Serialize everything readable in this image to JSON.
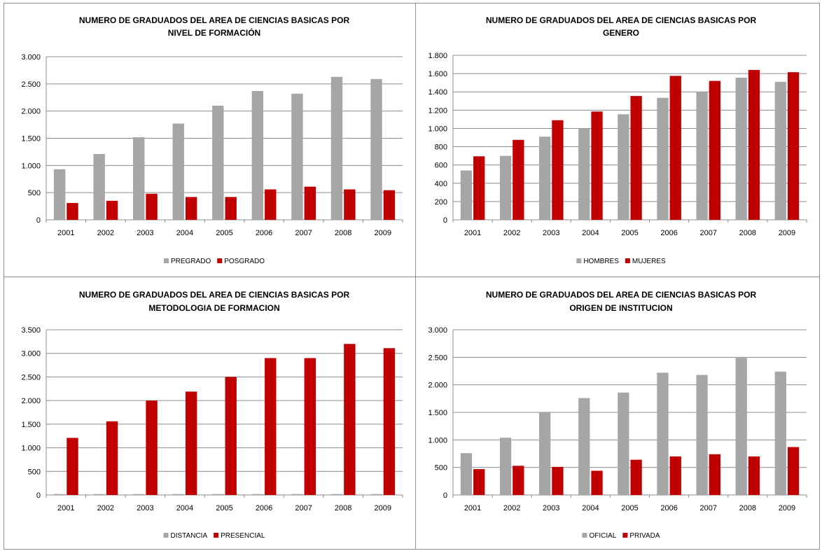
{
  "colors": {
    "gray": "#a6a6a6",
    "red": "#c00000",
    "gridline": "#8c8c8c",
    "axis": "#8c8c8c"
  },
  "chart_data": [
    {
      "type": "bar",
      "title": [
        "NUMERO DE GRADUADOS  DEL AREA DE CIENCIAS BASICAS POR",
        "NIVEL DE FORMACIÓN"
      ],
      "categories": [
        "2001",
        "2002",
        "2003",
        "2004",
        "2005",
        "2006",
        "2007",
        "2008",
        "2009"
      ],
      "series": [
        {
          "name": "PREGRADO",
          "color": "#a6a6a6",
          "values": [
            930,
            1210,
            1520,
            1770,
            2100,
            2370,
            2320,
            2630,
            2590
          ]
        },
        {
          "name": "POSGRADO",
          "color": "#c00000",
          "values": [
            310,
            350,
            480,
            420,
            420,
            560,
            610,
            560,
            545
          ]
        }
      ],
      "ylim": [
        0,
        3000
      ],
      "yticks": [
        0,
        500,
        1000,
        1500,
        2000,
        2500,
        3000
      ],
      "ytick_labels": [
        "0",
        "500",
        "1.000",
        "1.500",
        "2.000",
        "2.500",
        "3.000"
      ],
      "grid": true,
      "legend": "bottom"
    },
    {
      "type": "bar",
      "title": [
        "NUMERO DE GRADUADOS  DEL AREA DE CIENCIAS BASICAS POR",
        "GENERO"
      ],
      "categories": [
        "2001",
        "2002",
        "2003",
        "2004",
        "2005",
        "2006",
        "2007",
        "2008",
        "2009"
      ],
      "series": [
        {
          "name": "HOMBRES",
          "color": "#a6a6a6",
          "values": [
            540,
            700,
            910,
            1000,
            1155,
            1335,
            1400,
            1555,
            1510
          ]
        },
        {
          "name": "MUJERES",
          "color": "#c00000",
          "values": [
            695,
            875,
            1090,
            1185,
            1355,
            1575,
            1520,
            1640,
            1615
          ]
        }
      ],
      "ylim": [
        0,
        1800
      ],
      "yticks": [
        0,
        200,
        400,
        600,
        800,
        1000,
        1200,
        1400,
        1600,
        1800
      ],
      "ytick_labels": [
        "0",
        "200",
        "400",
        "600",
        "800",
        "1.000",
        "1.200",
        "1.400",
        "1.600",
        "1.800"
      ],
      "grid": true,
      "legend": "bottom"
    },
    {
      "type": "bar",
      "title": [
        "NUMERO DE GRADUADOS  DEL AREA DE CIENCIAS BASICAS POR",
        "METODOLOGIA DE FORMACION"
      ],
      "categories": [
        "2001",
        "2002",
        "2003",
        "2004",
        "2005",
        "2006",
        "2007",
        "2008",
        "2009"
      ],
      "series": [
        {
          "name": "DISTANCIA",
          "color": "#a6a6a6",
          "values": [
            20,
            20,
            20,
            20,
            20,
            20,
            20,
            20,
            20
          ]
        },
        {
          "name": "PRESENCIAL",
          "color": "#c00000",
          "values": [
            1210,
            1560,
            2000,
            2190,
            2500,
            2900,
            2900,
            3200,
            3110
          ]
        }
      ],
      "ylim": [
        0,
        3500
      ],
      "yticks": [
        0,
        500,
        1000,
        1500,
        2000,
        2500,
        3000,
        3500
      ],
      "ytick_labels": [
        "0",
        "500",
        "1.000",
        "1.500",
        "2.000",
        "2.500",
        "3.000",
        "3.500"
      ],
      "grid": true,
      "legend": "bottom"
    },
    {
      "type": "bar",
      "title": [
        "NUMERO DE GRADUADOS  DEL AREA DE CIENCIAS BASICAS POR",
        "ORIGEN DE INSTITUCION"
      ],
      "categories": [
        "2001",
        "2002",
        "2003",
        "2004",
        "2005",
        "2006",
        "2007",
        "2008",
        "2009"
      ],
      "series": [
        {
          "name": "OFICIAL",
          "color": "#a6a6a6",
          "values": [
            760,
            1040,
            1500,
            1760,
            1860,
            2220,
            2180,
            2490,
            2240
          ]
        },
        {
          "name": "PRIVADA",
          "color": "#c00000",
          "values": [
            470,
            530,
            510,
            440,
            640,
            700,
            740,
            700,
            870
          ]
        }
      ],
      "ylim": [
        0,
        3000
      ],
      "yticks": [
        0,
        500,
        1000,
        1500,
        2000,
        2500,
        3000
      ],
      "ytick_labels": [
        "0",
        "500",
        "1.000",
        "1.500",
        "2.000",
        "2.500",
        "3.000"
      ],
      "grid": true,
      "legend": "bottom"
    }
  ]
}
